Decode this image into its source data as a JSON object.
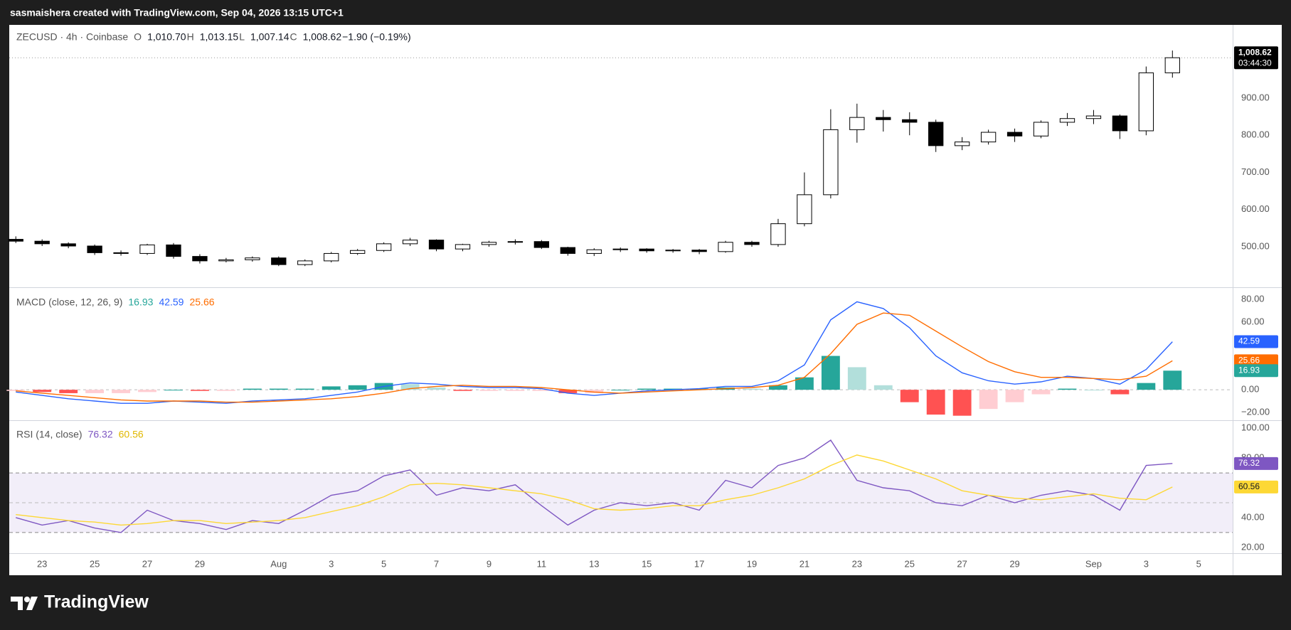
{
  "header": {
    "attribution": "sasmaishera created with TradingView.com, Sep 04, 2026 13:15 UTC+1"
  },
  "footer": {
    "brand": "TradingView"
  },
  "chart_data": [
    {
      "type": "candlestick",
      "title": "ZECUSD · 4h · Coinbase",
      "ohlc_legend": [
        {
          "label": "O",
          "value": "1,010.70"
        },
        {
          "label": "H",
          "value": "1,013.15"
        },
        {
          "label": "L",
          "value": "1,007.14"
        },
        {
          "label": "C",
          "value": "1,008.62"
        }
      ],
      "change": "−1.90 (−0.19%)",
      "x": [
        "2026-07-22",
        "2026-07-23",
        "2026-07-24",
        "2026-07-25",
        "2026-07-26",
        "2026-07-27",
        "2026-07-28",
        "2026-07-29",
        "2026-07-30",
        "2026-07-31",
        "2026-08-01",
        "2026-08-02",
        "2026-08-03",
        "2026-08-04",
        "2026-08-05",
        "2026-08-06",
        "2026-08-07",
        "2026-08-08",
        "2026-08-09",
        "2026-08-10",
        "2026-08-11",
        "2026-08-12",
        "2026-08-13",
        "2026-08-14",
        "2026-08-15",
        "2026-08-16",
        "2026-08-17",
        "2026-08-18",
        "2026-08-19",
        "2026-08-20",
        "2026-08-21",
        "2026-08-22",
        "2026-08-23",
        "2026-08-24",
        "2026-08-25",
        "2026-08-26",
        "2026-08-27",
        "2026-08-28",
        "2026-08-29",
        "2026-08-30",
        "2026-08-31",
        "2026-09-01",
        "2026-09-02",
        "2026-09-03",
        "2026-09-04"
      ],
      "open": [
        520,
        515,
        508,
        502,
        484,
        482,
        505,
        474,
        462,
        465,
        470,
        452,
        462,
        482,
        490,
        508,
        518,
        494,
        506,
        512,
        514,
        498,
        482,
        492,
        494,
        489,
        491,
        487,
        512,
        506,
        562,
        640,
        815,
        848,
        842,
        835,
        772,
        782,
        808,
        798,
        835,
        845,
        852,
        812,
        968
      ],
      "high": [
        528,
        520,
        512,
        506,
        490,
        508,
        510,
        480,
        470,
        474,
        474,
        466,
        486,
        494,
        512,
        524,
        520,
        508,
        516,
        520,
        518,
        500,
        496,
        498,
        496,
        494,
        494,
        516,
        516,
        575,
        700,
        870,
        885,
        868,
        862,
        842,
        795,
        815,
        818,
        840,
        860,
        868,
        856,
        985,
        1028
      ],
      "low": [
        510,
        502,
        496,
        478,
        476,
        478,
        468,
        455,
        458,
        460,
        448,
        448,
        458,
        478,
        486,
        502,
        488,
        488,
        500,
        506,
        494,
        476,
        475,
        486,
        484,
        484,
        480,
        484,
        500,
        500,
        555,
        630,
        780,
        810,
        800,
        755,
        760,
        775,
        782,
        792,
        825,
        830,
        790,
        800,
        955
      ],
      "close": [
        515,
        508,
        502,
        484,
        482,
        505,
        474,
        462,
        465,
        470,
        452,
        462,
        482,
        490,
        508,
        518,
        494,
        506,
        512,
        514,
        498,
        482,
        492,
        494,
        489,
        491,
        487,
        512,
        506,
        562,
        640,
        815,
        848,
        842,
        835,
        772,
        782,
        808,
        798,
        835,
        845,
        852,
        812,
        968,
        1008.62
      ],
      "up_color": "#ffffff",
      "down_color": "#000000",
      "xlim": [
        "2026-07-21T18:00",
        "2026-09-06T07:00"
      ],
      "ylim": [
        391,
        1097
      ],
      "yticks": [
        {
          "value": 500,
          "label": "500.00"
        },
        {
          "value": 600,
          "label": "600.00"
        },
        {
          "value": 700,
          "label": "700.00"
        },
        {
          "value": 800,
          "label": "800.00"
        },
        {
          "value": 900,
          "label": "900.00"
        }
      ],
      "last_price_label": "1,008.62",
      "countdown": "03:44:30"
    },
    {
      "type": "macd",
      "title": "MACD (close, 12, 26, 9)",
      "x": [
        "2026-07-22",
        "2026-07-23",
        "2026-07-24",
        "2026-07-25",
        "2026-07-26",
        "2026-07-27",
        "2026-07-28",
        "2026-07-29",
        "2026-07-30",
        "2026-07-31",
        "2026-08-01",
        "2026-08-02",
        "2026-08-03",
        "2026-08-04",
        "2026-08-05",
        "2026-08-06",
        "2026-08-07",
        "2026-08-08",
        "2026-08-09",
        "2026-08-10",
        "2026-08-11",
        "2026-08-12",
        "2026-08-13",
        "2026-08-14",
        "2026-08-15",
        "2026-08-16",
        "2026-08-17",
        "2026-08-18",
        "2026-08-19",
        "2026-08-20",
        "2026-08-21",
        "2026-08-22",
        "2026-08-23",
        "2026-08-24",
        "2026-08-25",
        "2026-08-26",
        "2026-08-27",
        "2026-08-28",
        "2026-08-29",
        "2026-08-30",
        "2026-08-31",
        "2026-09-01",
        "2026-09-02",
        "2026-09-03",
        "2026-09-04"
      ],
      "xlim": [
        "2026-07-21T18:00",
        "2026-09-06T07:00"
      ],
      "series": [
        {
          "type": "bar",
          "colors": [
            "#26a69a",
            "#b2dfdb",
            "#ffcdd2",
            "#ff5252"
          ],
          "values": [
            -1,
            -2,
            -3,
            -3,
            -3,
            -2,
            0,
            -1,
            -1,
            1,
            1,
            1,
            3,
            4,
            6,
            5,
            2,
            -1,
            -1,
            -1,
            -1,
            -3,
            -3,
            0,
            1,
            1,
            1,
            2,
            1,
            4,
            11,
            30,
            20,
            4,
            -11,
            -22,
            -23,
            -17,
            -11,
            -4,
            1,
            0,
            -4,
            6,
            16.93
          ]
        },
        {
          "type": "line",
          "color": "#2962ff",
          "values": [
            -2,
            -5,
            -8,
            -10,
            -12,
            -12,
            -10,
            -11,
            -12,
            -10,
            -9,
            -8,
            -5,
            -2,
            3,
            6,
            5,
            3,
            2,
            2,
            1,
            -3,
            -5,
            -3,
            -1,
            0,
            1,
            3,
            3,
            8,
            22,
            62,
            78,
            72,
            55,
            30,
            15,
            8,
            5,
            7,
            12,
            10,
            5,
            18,
            42.59
          ]
        },
        {
          "type": "line",
          "color": "#ff6d00",
          "values": [
            -1,
            -3,
            -5,
            -7,
            -9,
            -10,
            -10,
            -10,
            -11,
            -11,
            -10,
            -9,
            -8,
            -6,
            -3,
            1,
            3,
            4,
            3,
            3,
            2,
            0,
            -2,
            -3,
            -2,
            -1,
            0,
            1,
            2,
            4,
            11,
            32,
            58,
            68,
            66,
            52,
            38,
            25,
            16,
            11,
            11,
            10,
            9,
            12,
            25.66
          ]
        }
      ],
      "ylim": [
        -27,
        90.2
      ],
      "yticks": [
        {
          "value": -20,
          "label": "−20.00"
        },
        {
          "value": 0,
          "label": "0.00"
        },
        {
          "value": 60,
          "label": "60.00"
        },
        {
          "value": 80,
          "label": "80.00"
        }
      ]
    },
    {
      "type": "rsi",
      "title": "RSI (14, close)",
      "x": [
        "2026-07-22",
        "2026-07-23",
        "2026-07-24",
        "2026-07-25",
        "2026-07-26",
        "2026-07-27",
        "2026-07-28",
        "2026-07-29",
        "2026-07-30",
        "2026-07-31",
        "2026-08-01",
        "2026-08-02",
        "2026-08-03",
        "2026-08-04",
        "2026-08-05",
        "2026-08-06",
        "2026-08-07",
        "2026-08-08",
        "2026-08-09",
        "2026-08-10",
        "2026-08-11",
        "2026-08-12",
        "2026-08-13",
        "2026-08-14",
        "2026-08-15",
        "2026-08-16",
        "2026-08-17",
        "2026-08-18",
        "2026-08-19",
        "2026-08-20",
        "2026-08-21",
        "2026-08-22",
        "2026-08-23",
        "2026-08-24",
        "2026-08-25",
        "2026-08-26",
        "2026-08-27",
        "2026-08-28",
        "2026-08-29",
        "2026-08-30",
        "2026-08-31",
        "2026-09-01",
        "2026-09-02",
        "2026-09-03",
        "2026-09-04"
      ],
      "xlim": [
        "2026-07-21T18:00",
        "2026-09-06T07:00"
      ],
      "xticks": [
        {
          "value": "2026-07-23",
          "label": "23"
        },
        {
          "value": "2026-07-25",
          "label": "25"
        },
        {
          "value": "2026-07-27",
          "label": "27"
        },
        {
          "value": "2026-07-29",
          "label": "29"
        },
        {
          "value": "2026-08-01",
          "label": "Aug"
        },
        {
          "value": "2026-08-03",
          "label": "3"
        },
        {
          "value": "2026-08-05",
          "label": "5"
        },
        {
          "value": "2026-08-07",
          "label": "7"
        },
        {
          "value": "2026-08-09",
          "label": "9"
        },
        {
          "value": "2026-08-11",
          "label": "11"
        },
        {
          "value": "2026-08-13",
          "label": "13"
        },
        {
          "value": "2026-08-15",
          "label": "15"
        },
        {
          "value": "2026-08-17",
          "label": "17"
        },
        {
          "value": "2026-08-19",
          "label": "19"
        },
        {
          "value": "2026-08-21",
          "label": "21"
        },
        {
          "value": "2026-08-23",
          "label": "23"
        },
        {
          "value": "2026-08-25",
          "label": "25"
        },
        {
          "value": "2026-08-27",
          "label": "27"
        },
        {
          "value": "2026-08-29",
          "label": "29"
        },
        {
          "value": "2026-09-01",
          "label": "Sep"
        },
        {
          "value": "2026-09-03",
          "label": "3"
        },
        {
          "value": "2026-09-05",
          "label": "5"
        }
      ],
      "series": [
        {
          "type": "line",
          "color": "#7e57c2",
          "values": [
            40,
            35,
            38,
            33,
            30,
            45,
            38,
            36,
            32,
            38,
            36,
            45,
            55,
            58,
            68,
            72,
            55,
            60,
            58,
            62,
            48,
            35,
            45,
            50,
            48,
            50,
            45,
            65,
            60,
            75,
            80,
            92,
            65,
            60,
            58,
            50,
            48,
            55,
            50,
            55,
            58,
            55,
            45,
            75,
            76.32
          ]
        },
        {
          "type": "line",
          "color": "#fdd835",
          "values": [
            42,
            40,
            38,
            37,
            35,
            36,
            38,
            38,
            36,
            37,
            38,
            40,
            44,
            48,
            54,
            62,
            63,
            62,
            60,
            58,
            56,
            52,
            46,
            45,
            46,
            48,
            48,
            52,
            55,
            60,
            66,
            75,
            82,
            78,
            72,
            66,
            58,
            55,
            53,
            52,
            54,
            56,
            53,
            52,
            60.56
          ]
        }
      ],
      "bands": [
        30,
        70
      ],
      "midline": 50,
      "band_color": "rgba(126,87,194,0.1)",
      "ylim": [
        16.1,
        104.4
      ],
      "yticks": [
        {
          "value": 20,
          "label": "20.00"
        },
        {
          "value": 40,
          "label": "40.00"
        },
        {
          "value": 80,
          "label": "80.00"
        },
        {
          "value": 100,
          "label": "100.00"
        }
      ]
    }
  ]
}
